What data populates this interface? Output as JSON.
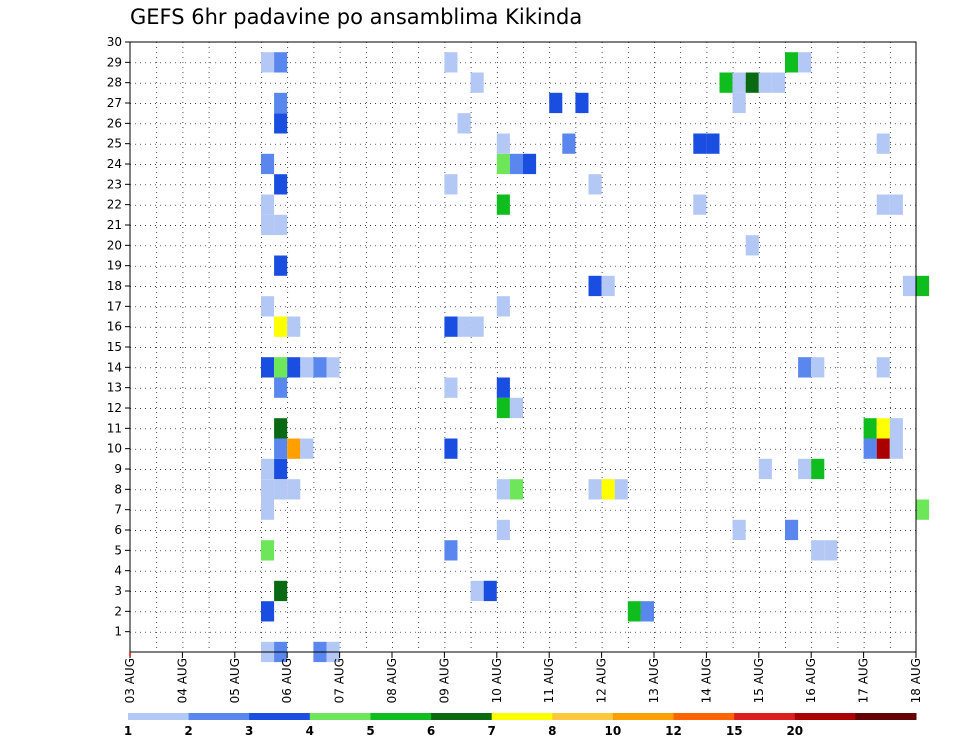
{
  "chart_data": {
    "type": "heatmap",
    "title": "GEFS 6hr padavine po ansamblima Kikinda",
    "xlabel": "",
    "ylabel": "",
    "x_tick_labels": [
      "03 AUG",
      "04 AUG",
      "05 AUG",
      "06 AUG",
      "07 AUG",
      "08 AUG",
      "09 AUG",
      "10 AUG",
      "11 AUG",
      "12 AUG",
      "13 AUG",
      "14 AUG",
      "15 AUG",
      "16 AUG",
      "17 AUG",
      "18 AUG"
    ],
    "x_range_days": [
      0,
      15
    ],
    "y_tick_labels": [
      "1",
      "2",
      "3",
      "4",
      "5",
      "6",
      "7",
      "8",
      "9",
      "10",
      "11",
      "12",
      "13",
      "14",
      "15",
      "16",
      "17",
      "18",
      "19",
      "20",
      "21",
      "22",
      "23",
      "24",
      "25",
      "26",
      "27",
      "28",
      "29",
      "30"
    ],
    "y_range": [
      0,
      30
    ],
    "grid": true,
    "colorbar": {
      "levels": [
        "1",
        "2",
        "3",
        "4",
        "5",
        "6",
        "7",
        "8",
        "10",
        "12",
        "15",
        "20"
      ],
      "colors": [
        "#b4c8f5",
        "#5a87ee",
        "#1a4ee0",
        "#6ee65a",
        "#0fbe1e",
        "#0a6a14",
        "#ffff00",
        "#ffc83c",
        "#ffa000",
        "#ff6400",
        "#dc1e1e",
        "#aa0000",
        "#640000"
      ]
    },
    "series_note": "cells: [member_y, day_offset_start, level_index]",
    "cells": [
      [
        0,
        2.5,
        0
      ],
      [
        0,
        2.75,
        1
      ],
      [
        0,
        3.5,
        1
      ],
      [
        0,
        3.75,
        0
      ],
      [
        2,
        2.5,
        2
      ],
      [
        2,
        9.5,
        4
      ],
      [
        2,
        9.75,
        1
      ],
      [
        3,
        2.75,
        5
      ],
      [
        3,
        6.5,
        0
      ],
      [
        3,
        6.75,
        2
      ],
      [
        5,
        2.5,
        3
      ],
      [
        5,
        6.0,
        1
      ],
      [
        5,
        13.0,
        0
      ],
      [
        5,
        13.25,
        0
      ],
      [
        6,
        7.0,
        0
      ],
      [
        6,
        11.5,
        0
      ],
      [
        6,
        12.5,
        1
      ],
      [
        7,
        2.5,
        0
      ],
      [
        7,
        15.0,
        3
      ],
      [
        8,
        2.5,
        0
      ],
      [
        8,
        2.75,
        0
      ],
      [
        8,
        3.0,
        0
      ],
      [
        8,
        7.0,
        0
      ],
      [
        8,
        7.25,
        3
      ],
      [
        8,
        8.75,
        0
      ],
      [
        8,
        9.0,
        6
      ],
      [
        8,
        9.25,
        0
      ],
      [
        9,
        2.5,
        0
      ],
      [
        9,
        2.75,
        2
      ],
      [
        9,
        12.0,
        0
      ],
      [
        9,
        12.75,
        0
      ],
      [
        9,
        13.0,
        4
      ],
      [
        10,
        2.75,
        1
      ],
      [
        10,
        3.0,
        8
      ],
      [
        10,
        3.25,
        0
      ],
      [
        10,
        6.0,
        2
      ],
      [
        10,
        14.0,
        1
      ],
      [
        10,
        14.25,
        11
      ],
      [
        10,
        14.5,
        0
      ],
      [
        11,
        2.75,
        5
      ],
      [
        11,
        14.0,
        4
      ],
      [
        11,
        14.25,
        6
      ],
      [
        11,
        14.5,
        0
      ],
      [
        12,
        7.0,
        4
      ],
      [
        12,
        7.25,
        0
      ],
      [
        13,
        2.75,
        1
      ],
      [
        13,
        6.0,
        0
      ],
      [
        13,
        7.0,
        2
      ],
      [
        14,
        2.5,
        2
      ],
      [
        14,
        2.75,
        3
      ],
      [
        14,
        3.0,
        2
      ],
      [
        14,
        3.25,
        0
      ],
      [
        14,
        3.5,
        1
      ],
      [
        14,
        3.75,
        0
      ],
      [
        14,
        12.75,
        1
      ],
      [
        14,
        13.0,
        0
      ],
      [
        14,
        14.25,
        0
      ],
      [
        16,
        2.75,
        6
      ],
      [
        16,
        3.0,
        0
      ],
      [
        16,
        6.0,
        2
      ],
      [
        16,
        6.25,
        0
      ],
      [
        16,
        6.5,
        0
      ],
      [
        17,
        2.5,
        0
      ],
      [
        17,
        7.0,
        0
      ],
      [
        18,
        8.75,
        2
      ],
      [
        18,
        9.0,
        0
      ],
      [
        18,
        14.75,
        0
      ],
      [
        18,
        15.0,
        4
      ],
      [
        19,
        2.75,
        2
      ],
      [
        20,
        11.75,
        0
      ],
      [
        21,
        2.5,
        0
      ],
      [
        21,
        2.75,
        0
      ],
      [
        22,
        2.5,
        0
      ],
      [
        22,
        7.0,
        4
      ],
      [
        22,
        10.75,
        0
      ],
      [
        22,
        14.25,
        0
      ],
      [
        22,
        14.5,
        0
      ],
      [
        23,
        2.75,
        2
      ],
      [
        23,
        6.0,
        0
      ],
      [
        23,
        8.75,
        0
      ],
      [
        24,
        2.5,
        1
      ],
      [
        24,
        7.0,
        3
      ],
      [
        24,
        7.25,
        1
      ],
      [
        24,
        7.5,
        2
      ],
      [
        25,
        7.0,
        0
      ],
      [
        25,
        8.25,
        1
      ],
      [
        25,
        10.75,
        2
      ],
      [
        25,
        11.0,
        2
      ],
      [
        25,
        14.25,
        0
      ],
      [
        26,
        2.75,
        2
      ],
      [
        26,
        6.25,
        0
      ],
      [
        27,
        2.75,
        1
      ],
      [
        27,
        8.0,
        2
      ],
      [
        27,
        8.5,
        2
      ],
      [
        27,
        11.5,
        0
      ],
      [
        28,
        6.5,
        0
      ],
      [
        28,
        11.25,
        4
      ],
      [
        28,
        11.5,
        0
      ],
      [
        28,
        11.75,
        5
      ],
      [
        28,
        12.0,
        0
      ],
      [
        28,
        12.25,
        0
      ],
      [
        29,
        2.5,
        0
      ],
      [
        29,
        2.75,
        1
      ],
      [
        29,
        6.0,
        0
      ],
      [
        29,
        12.5,
        4
      ],
      [
        29,
        12.75,
        0
      ]
    ]
  }
}
